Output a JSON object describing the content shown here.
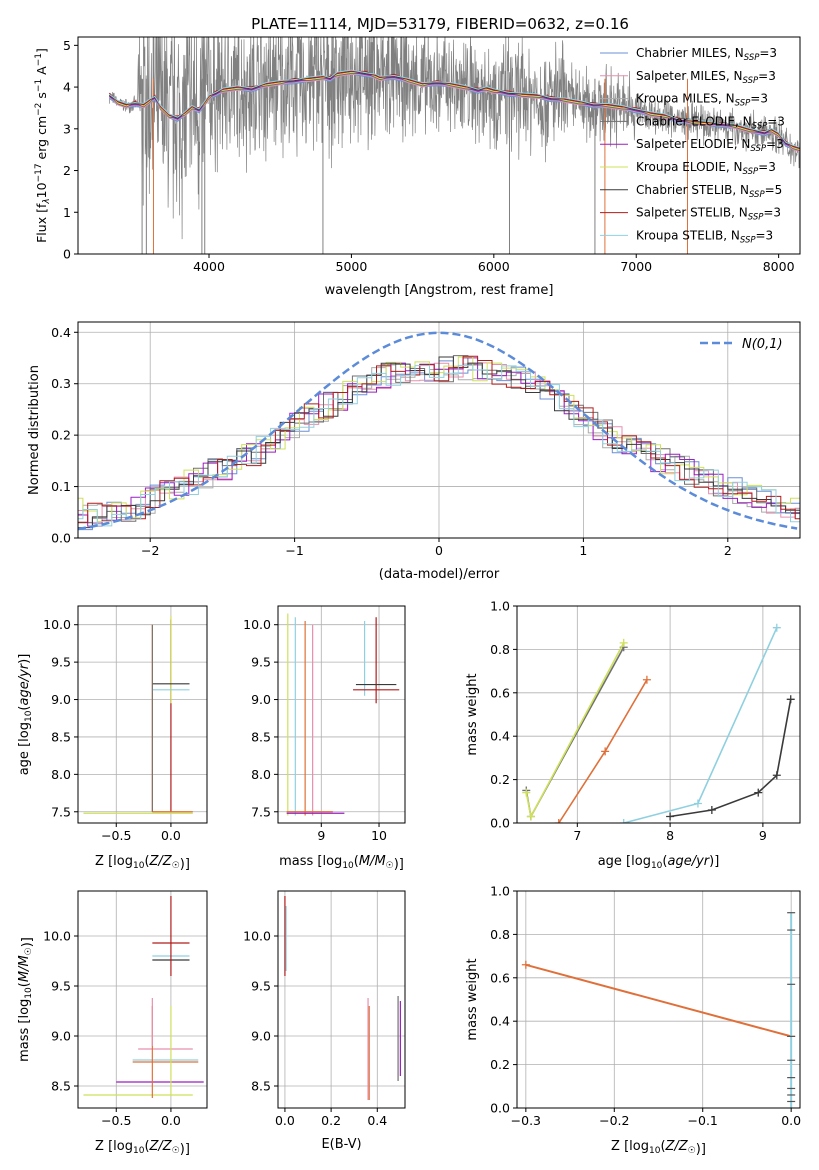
{
  "figure": {
    "title": "PLATE=1114, MJD=53179, FIBERID=0632, z=0.16"
  },
  "chart_data": [
    {
      "id": "spectrum",
      "type": "line",
      "xlabel": "wavelength [Angstrom, rest frame]",
      "ylabel": "Flux [f_λ 10^-17 erg cm^-2 s^-1 A^-1]",
      "xlim": [
        3080,
        8150
      ],
      "ylim": [
        0,
        5.2
      ],
      "xticks": [
        4000,
        5000,
        6000,
        7000,
        8000
      ],
      "yticks": [
        0,
        1,
        2,
        3,
        4,
        5
      ],
      "grid": false,
      "legend_position": "top-right",
      "observed_color": "#808080",
      "model_continuum": [
        [
          3300,
          3.8
        ],
        [
          3360,
          3.62
        ],
        [
          3420,
          3.55
        ],
        [
          3480,
          3.6
        ],
        [
          3540,
          3.55
        ],
        [
          3580,
          3.65
        ],
        [
          3620,
          3.75
        ],
        [
          3660,
          3.5
        ],
        [
          3720,
          3.3
        ],
        [
          3780,
          3.25
        ],
        [
          3830,
          3.35
        ],
        [
          3880,
          3.5
        ],
        [
          3930,
          3.45
        ],
        [
          3970,
          3.6
        ],
        [
          4000,
          3.75
        ],
        [
          4050,
          3.85
        ],
        [
          4100,
          3.92
        ],
        [
          4200,
          3.97
        ],
        [
          4300,
          3.95
        ],
        [
          4400,
          4.05
        ],
        [
          4500,
          4.1
        ],
        [
          4600,
          4.15
        ],
        [
          4700,
          4.18
        ],
        [
          4800,
          4.22
        ],
        [
          4850,
          4.2
        ],
        [
          4900,
          4.3
        ],
        [
          5000,
          4.35
        ],
        [
          5100,
          4.32
        ],
        [
          5170,
          4.25
        ],
        [
          5200,
          4.2
        ],
        [
          5300,
          4.25
        ],
        [
          5400,
          4.15
        ],
        [
          5500,
          4.05
        ],
        [
          5600,
          4.1
        ],
        [
          5700,
          4.05
        ],
        [
          5800,
          3.98
        ],
        [
          5890,
          3.92
        ],
        [
          5950,
          3.95
        ],
        [
          6000,
          3.9
        ],
        [
          6100,
          3.85
        ],
        [
          6200,
          3.8
        ],
        [
          6300,
          3.78
        ],
        [
          6400,
          3.72
        ],
        [
          6500,
          3.68
        ],
        [
          6600,
          3.62
        ],
        [
          6700,
          3.57
        ],
        [
          6800,
          3.55
        ],
        [
          6900,
          3.5
        ],
        [
          7000,
          3.45
        ],
        [
          7100,
          3.35
        ],
        [
          7200,
          3.3
        ],
        [
          7300,
          3.2
        ],
        [
          7400,
          3.15
        ],
        [
          7500,
          3.12
        ],
        [
          7600,
          3.1
        ],
        [
          7700,
          3.05
        ],
        [
          7800,
          2.95
        ],
        [
          7900,
          2.9
        ],
        [
          7950,
          2.95
        ],
        [
          8000,
          2.85
        ],
        [
          8050,
          2.65
        ],
        [
          8100,
          2.55
        ],
        [
          8150,
          2.5
        ]
      ],
      "series": [
        {
          "name": "Chabrier MILES, N_SSP=3",
          "label_main": "Chabrier MILES, N",
          "label_sub": "SSP",
          "label_tail": "=3",
          "color": "#6b8fd6"
        },
        {
          "name": "Salpeter MILES, N_SSP=3",
          "label_main": "Salpeter MILES, N",
          "label_sub": "SSP",
          "label_tail": "=3",
          "color": "#e88fb0"
        },
        {
          "name": "Kroupa MILES, N_SSP=3",
          "label_main": "Kroupa MILES, N",
          "label_sub": "SSP",
          "label_tail": "=3",
          "color": "#ababab"
        },
        {
          "name": "Chabrier ELODIE, N_SSP=3",
          "label_main": "Chabrier ELODIE, N",
          "label_sub": "SSP",
          "label_tail": "=3",
          "color": "#707070"
        },
        {
          "name": "Salpeter ELODIE, N_SSP=3",
          "label_main": "Salpeter ELODIE, N",
          "label_sub": "SSP",
          "label_tail": "=3",
          "color": "#9b1fc0"
        },
        {
          "name": "Kroupa ELODIE, N_SSP=3",
          "label_main": "Kroupa ELODIE, N",
          "label_sub": "SSP",
          "label_tail": "=3",
          "color": "#cfe05a"
        },
        {
          "name": "Chabrier STELIB, N_SSP=5",
          "label_main": "Chabrier STELIB, N",
          "label_sub": "SSP",
          "label_tail": "=5",
          "color": "#3a3a3a"
        },
        {
          "name": "Salpeter STELIB, N_SSP=3",
          "label_main": "Salpeter STELIB, N",
          "label_sub": "SSP",
          "label_tail": "=3",
          "color": "#b01c1c"
        },
        {
          "name": "Kroupa STELIB, N_SSP=3",
          "label_main": "Kroupa STELIB, N",
          "label_sub": "SSP",
          "label_tail": "=3",
          "color": "#8fd0e0"
        }
      ]
    },
    {
      "id": "residuals",
      "type": "line",
      "xlabel": "(data-model)/error",
      "ylabel": "Normed distribution",
      "xlim": [
        -2.5,
        2.5
      ],
      "ylim": [
        0,
        0.42
      ],
      "xticks": [
        -2,
        -1,
        0,
        1,
        2
      ],
      "yticks": [
        0.0,
        0.1,
        0.2,
        0.3,
        0.4
      ],
      "grid": true,
      "legend_position": "top-right",
      "reference": {
        "name": "N(0,1)",
        "color": "#5b8bd9"
      },
      "histogram_envelope": [
        [
          -2.5,
          0.04
        ],
        [
          -2.3,
          0.045
        ],
        [
          -2.1,
          0.055
        ],
        [
          -1.9,
          0.09
        ],
        [
          -1.7,
          0.11
        ],
        [
          -1.5,
          0.135
        ],
        [
          -1.3,
          0.16
        ],
        [
          -1.1,
          0.195
        ],
        [
          -0.9,
          0.235
        ],
        [
          -0.7,
          0.27
        ],
        [
          -0.5,
          0.3
        ],
        [
          -0.3,
          0.32
        ],
        [
          -0.1,
          0.325
        ],
        [
          0.1,
          0.33
        ],
        [
          0.3,
          0.33
        ],
        [
          0.5,
          0.315
        ],
        [
          0.7,
          0.29
        ],
        [
          0.9,
          0.255
        ],
        [
          1.1,
          0.215
        ],
        [
          1.3,
          0.18
        ],
        [
          1.5,
          0.155
        ],
        [
          1.7,
          0.135
        ],
        [
          1.9,
          0.11
        ],
        [
          2.1,
          0.09
        ],
        [
          2.3,
          0.07
        ],
        [
          2.5,
          0.055
        ]
      ]
    },
    {
      "id": "age_vs_Z",
      "type": "scatter",
      "xlabel": "Z [log10(Z/Z☉)]",
      "ylabel": "age [log10(age/yr)]",
      "xlim": [
        -0.85,
        0.33
      ],
      "ylim": [
        7.35,
        10.25
      ],
      "xticks": [
        -0.5,
        0.0
      ],
      "yticks": [
        7.5,
        8.0,
        8.5,
        9.0,
        9.5,
        10.0
      ],
      "grid": true,
      "markers": [
        {
          "x": -0.17,
          "y": 10.0,
          "color": "#e0703a",
          "y_from": 7.5
        },
        {
          "x": 0.0,
          "y": 10.07,
          "color": "#b01c1c",
          "y_from": 7.5
        },
        {
          "x": 0.0,
          "y": 10.12,
          "color": "#cfe05a",
          "y_from": 8.95
        },
        {
          "x": 0.0,
          "y": 9.21,
          "color": "#3a3a3a",
          "x_err": 0.17
        },
        {
          "x": 0.0,
          "y": 9.13,
          "color": "#8fd0e0",
          "x_err": 0.17
        },
        {
          "x": -0.3,
          "y": 7.48,
          "color": "#cfe05a",
          "x_err": 0.5
        }
      ]
    },
    {
      "id": "age_vs_mass",
      "type": "scatter",
      "xlabel": "mass [log10(M/M☉)]",
      "ylabel": "",
      "xlim": [
        8.25,
        10.45
      ],
      "ylim": [
        7.35,
        10.25
      ],
      "xticks": [
        9,
        10
      ],
      "yticks": [
        7.5,
        8.0,
        8.5,
        9.0,
        9.5,
        10.0
      ],
      "grid": true,
      "markers": [
        {
          "x": 8.42,
          "y": 10.15,
          "color": "#cfe05a",
          "y_from": 7.45
        },
        {
          "x": 8.55,
          "y": 10.1,
          "color": "#8fd0e0",
          "y_from": 7.45
        },
        {
          "x": 8.72,
          "y": 10.05,
          "color": "#e0703a",
          "y_from": 7.45
        },
        {
          "x": 8.85,
          "y": 10.0,
          "color": "#e88fb0",
          "y_from": 7.45
        },
        {
          "x": 9.75,
          "y": 10.05,
          "color": "#8fd0e0",
          "y_from": 9.05
        },
        {
          "x": 9.95,
          "y": 10.1,
          "color": "#b01c1c",
          "y_from": 8.95
        },
        {
          "x": 9.95,
          "y": 9.2,
          "color": "#3a3a3a",
          "x_err": 0.35
        },
        {
          "x": 9.95,
          "y": 9.13,
          "color": "#b01c1c",
          "x_err": 0.4
        }
      ]
    },
    {
      "id": "weight_vs_age",
      "type": "line",
      "xlabel": "age [log10(age/yr)]",
      "ylabel": "mass weight",
      "xlim": [
        6.35,
        9.4
      ],
      "ylim": [
        0.0,
        1.0
      ],
      "xticks": [
        7,
        8,
        9
      ],
      "yticks": [
        0.0,
        0.2,
        0.4,
        0.6,
        0.8,
        1.0
      ],
      "grid": true,
      "series": [
        {
          "color": "#707070",
          "points": [
            [
              6.45,
              0.15
            ],
            [
              6.5,
              0.03
            ],
            [
              7.5,
              0.81
            ]
          ]
        },
        {
          "color": "#cfe05a",
          "points": [
            [
              6.45,
              0.14
            ],
            [
              6.5,
              0.03
            ],
            [
              7.5,
              0.83
            ]
          ]
        },
        {
          "color": "#e0703a",
          "points": [
            [
              6.8,
              0.0
            ],
            [
              7.3,
              0.33
            ],
            [
              7.75,
              0.66
            ]
          ]
        },
        {
          "color": "#8fd0e0",
          "points": [
            [
              7.5,
              0.0
            ],
            [
              8.3,
              0.09
            ],
            [
              9.15,
              0.9
            ]
          ]
        },
        {
          "color": "#3a3a3a",
          "points": [
            [
              8.0,
              0.03
            ],
            [
              8.45,
              0.06
            ],
            [
              8.95,
              0.14
            ],
            [
              9.15,
              0.22
            ],
            [
              9.3,
              0.57
            ]
          ]
        }
      ]
    },
    {
      "id": "mass_vs_Z",
      "type": "scatter",
      "xlabel": "Z [log10(Z/Z☉)]",
      "ylabel": "mass [log10(M/M☉)]",
      "xlim": [
        -0.85,
        0.33
      ],
      "ylim": [
        8.28,
        10.45
      ],
      "xticks": [
        -0.5,
        0.0
      ],
      "yticks": [
        8.5,
        9.0,
        9.5,
        10.0
      ],
      "grid": true,
      "markers": [
        {
          "x": 0.0,
          "y": 9.93,
          "color": "#b01c1c",
          "x_err": 0.17
        },
        {
          "x": 0.0,
          "y": 9.8,
          "color": "#8fd0e0",
          "x_err": 0.17
        },
        {
          "x": 0.0,
          "y": 9.76,
          "color": "#3a3a3a",
          "x_err": 0.17
        },
        {
          "x": -0.05,
          "y": 8.87,
          "color": "#e88fb0",
          "x_err": 0.25
        },
        {
          "x": -0.05,
          "y": 8.76,
          "color": "#8fd0e0",
          "x_err": 0.3
        },
        {
          "x": -0.05,
          "y": 8.74,
          "color": "#e0703a",
          "x_err": 0.3
        },
        {
          "x": -0.1,
          "y": 8.54,
          "color": "#9b1fc0",
          "x_err": 0.4
        },
        {
          "x": -0.3,
          "y": 8.41,
          "color": "#cfe05a",
          "x_err": 0.5
        }
      ]
    },
    {
      "id": "mass_vs_ebv",
      "type": "scatter",
      "xlabel": "E(B-V)",
      "ylabel": "",
      "xlim": [
        -0.03,
        0.52
      ],
      "ylim": [
        8.28,
        10.45
      ],
      "xticks": [
        0.0,
        0.2,
        0.4
      ],
      "yticks": [
        8.5,
        9.0,
        9.5,
        10.0
      ],
      "grid": true,
      "markers": [
        {
          "x": 0.0,
          "y": 10.4,
          "color": "#b01c1c",
          "y_from": 9.6
        },
        {
          "x": 0.36,
          "y": 9.38,
          "color": "#e88fb0",
          "y_from": 8.36
        },
        {
          "x": 0.49,
          "y": 9.4,
          "color": "#707070",
          "y_from": 8.55
        },
        {
          "x": 0.5,
          "y": 9.35,
          "color": "#9b1fc0",
          "y_from": 8.6
        }
      ]
    },
    {
      "id": "weight_vs_Z",
      "type": "line",
      "xlabel": "Z [log10(Z/Z☉)]",
      "ylabel": "mass weight",
      "xlim": [
        -0.31,
        0.01
      ],
      "ylim": [
        0.0,
        1.0
      ],
      "xticks": [
        -0.3,
        -0.2,
        -0.1,
        0.0
      ],
      "yticks": [
        0.0,
        0.2,
        0.4,
        0.6,
        0.8,
        1.0
      ],
      "grid": true,
      "series": [
        {
          "color": "#e0703a",
          "points": [
            [
              -0.3,
              0.66
            ],
            [
              0.0,
              0.33
            ]
          ]
        }
      ],
      "vertical_points": {
        "x": 0.0,
        "values": [
          0.03,
          0.06,
          0.09,
          0.14,
          0.22,
          0.33,
          0.57,
          0.82,
          0.9
        ]
      }
    }
  ]
}
